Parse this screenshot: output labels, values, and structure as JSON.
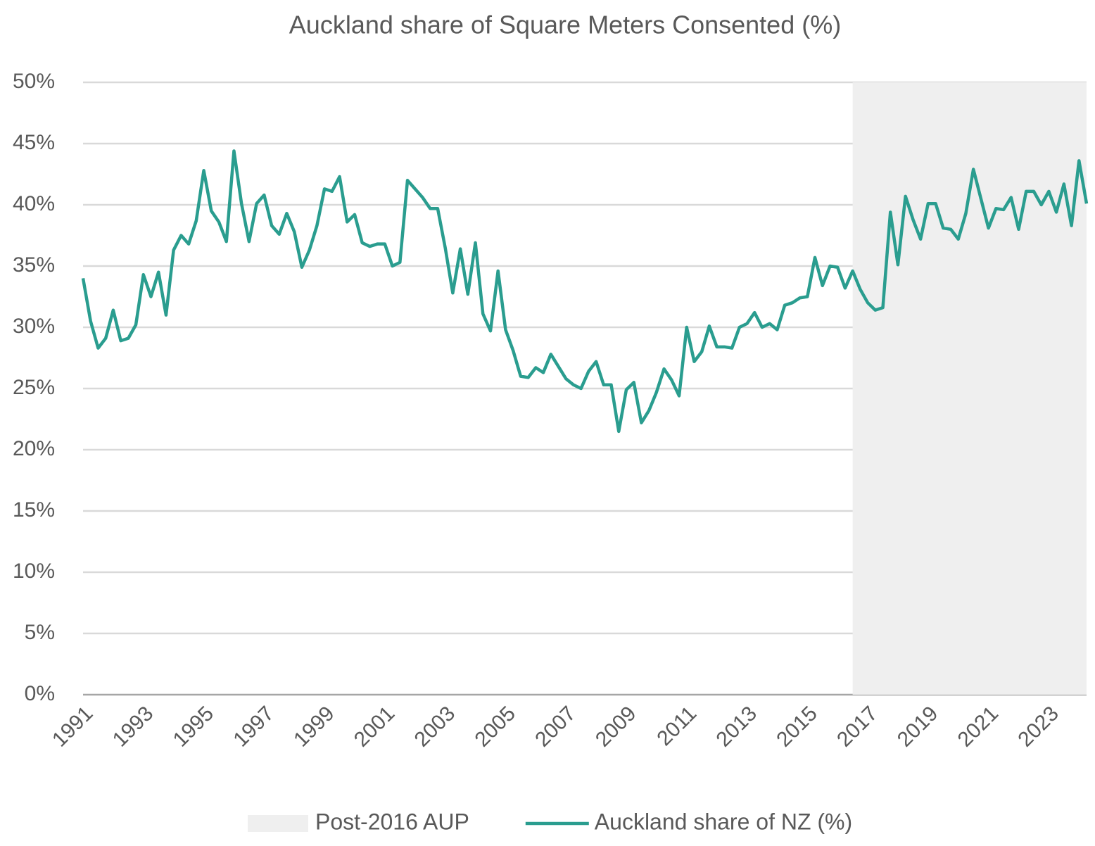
{
  "chart_data": {
    "type": "line",
    "title": "Auckland share of Square Meters Consented (%)",
    "categories": [
      "1991",
      null,
      null,
      null,
      null,
      null,
      null,
      null,
      "1993",
      null,
      null,
      null,
      null,
      null,
      null,
      null,
      "1995",
      null,
      null,
      null,
      null,
      null,
      null,
      null,
      "1997",
      null,
      null,
      null,
      null,
      null,
      null,
      null,
      "1999",
      null,
      null,
      null,
      null,
      null,
      null,
      null,
      "2001",
      null,
      null,
      null,
      null,
      null,
      null,
      null,
      "2003",
      null,
      null,
      null,
      null,
      null,
      null,
      null,
      "2005",
      null,
      null,
      null,
      null,
      null,
      null,
      null,
      "2007",
      null,
      null,
      null,
      null,
      null,
      null,
      null,
      "2009",
      null,
      null,
      null,
      null,
      null,
      null,
      null,
      "2011",
      null,
      null,
      null,
      null,
      null,
      null,
      null,
      "2013",
      null,
      null,
      null,
      null,
      null,
      null,
      null,
      "2015",
      null,
      null,
      null,
      null,
      null,
      null,
      null,
      "2017",
      null,
      null,
      null,
      null,
      null,
      null,
      null,
      "2019",
      null,
      null,
      null,
      null,
      null,
      null,
      null,
      "2021",
      null,
      null,
      null,
      null,
      null,
      null,
      null,
      "2023",
      null,
      null,
      null,
      null,
      null
    ],
    "series": [
      {
        "name": "Post-2016 AUP",
        "type": "area",
        "color": "#efefef",
        "values": [
          null,
          null,
          null,
          null,
          null,
          null,
          null,
          null,
          null,
          null,
          null,
          null,
          null,
          null,
          null,
          null,
          null,
          null,
          null,
          null,
          null,
          null,
          null,
          null,
          null,
          null,
          null,
          null,
          null,
          null,
          null,
          null,
          null,
          null,
          null,
          null,
          null,
          null,
          null,
          null,
          null,
          null,
          null,
          null,
          null,
          null,
          null,
          null,
          null,
          null,
          null,
          null,
          null,
          null,
          null,
          null,
          null,
          null,
          null,
          null,
          null,
          null,
          null,
          null,
          null,
          null,
          null,
          null,
          null,
          null,
          null,
          null,
          null,
          null,
          null,
          null,
          null,
          null,
          null,
          null,
          null,
          null,
          null,
          null,
          null,
          null,
          null,
          null,
          null,
          null,
          null,
          null,
          null,
          null,
          null,
          null,
          null,
          null,
          null,
          null,
          null,
          null,
          50,
          50,
          50,
          50,
          50,
          50,
          50,
          50,
          50,
          50,
          50,
          50,
          50,
          50,
          50,
          50,
          50,
          50,
          50,
          50,
          50,
          50,
          50,
          50,
          50,
          50,
          50,
          50,
          50,
          50,
          50,
          50
        ]
      },
      {
        "name": "Auckland share of NZ (%)",
        "type": "line",
        "color": "#2a9d8f",
        "values": [
          34.0,
          30.5,
          28.3,
          29.1,
          31.4,
          28.9,
          29.1,
          30.2,
          34.3,
          32.5,
          34.5,
          31.0,
          36.3,
          37.5,
          36.8,
          38.7,
          42.8,
          39.5,
          38.6,
          37.0,
          44.4,
          40.1,
          37.0,
          40.1,
          40.8,
          38.3,
          37.6,
          39.3,
          37.8,
          34.9,
          36.3,
          38.3,
          41.3,
          41.1,
          42.3,
          38.6,
          39.2,
          36.9,
          36.6,
          36.8,
          36.8,
          35.0,
          35.3,
          42.0,
          41.3,
          40.6,
          39.7,
          39.7,
          36.5,
          32.8,
          36.4,
          32.7,
          36.9,
          31.1,
          29.7,
          34.6,
          29.8,
          28.1,
          26.0,
          25.9,
          26.7,
          26.3,
          27.8,
          26.8,
          25.8,
          25.3,
          25.0,
          26.4,
          27.2,
          25.3,
          25.3,
          21.5,
          24.9,
          25.5,
          22.2,
          23.2,
          24.7,
          26.6,
          25.7,
          24.4,
          30.0,
          27.2,
          28.0,
          30.1,
          28.4,
          28.4,
          28.3,
          30.0,
          30.3,
          31.2,
          30.0,
          30.3,
          29.8,
          31.8,
          32.0,
          32.4,
          32.5,
          35.7,
          33.4,
          35.0,
          34.9,
          33.2,
          34.6,
          33.1,
          32.0,
          31.4,
          31.6,
          39.4,
          35.1,
          40.7,
          38.8,
          37.2,
          40.1,
          40.1,
          38.1,
          38.0,
          37.2,
          39.3,
          42.9,
          40.5,
          38.1,
          39.7,
          39.6,
          40.6,
          38.0,
          41.1,
          41.1,
          40.0,
          41.1,
          39.4,
          41.7,
          38.3,
          43.6,
          40.1
        ]
      }
    ],
    "ylim": [
      0,
      50
    ],
    "yticks": [
      {
        "value": 0,
        "label": "0%"
      },
      {
        "value": 5,
        "label": "5%"
      },
      {
        "value": 10,
        "label": "10%"
      },
      {
        "value": 15,
        "label": "15%"
      },
      {
        "value": 20,
        "label": "20%"
      },
      {
        "value": 25,
        "label": "25%"
      },
      {
        "value": 30,
        "label": "30%"
      },
      {
        "value": 35,
        "label": "35%"
      },
      {
        "value": 40,
        "label": "40%"
      },
      {
        "value": 45,
        "label": "45%"
      },
      {
        "value": 50,
        "label": "50%"
      }
    ],
    "grid": true,
    "legend": "bottom"
  }
}
